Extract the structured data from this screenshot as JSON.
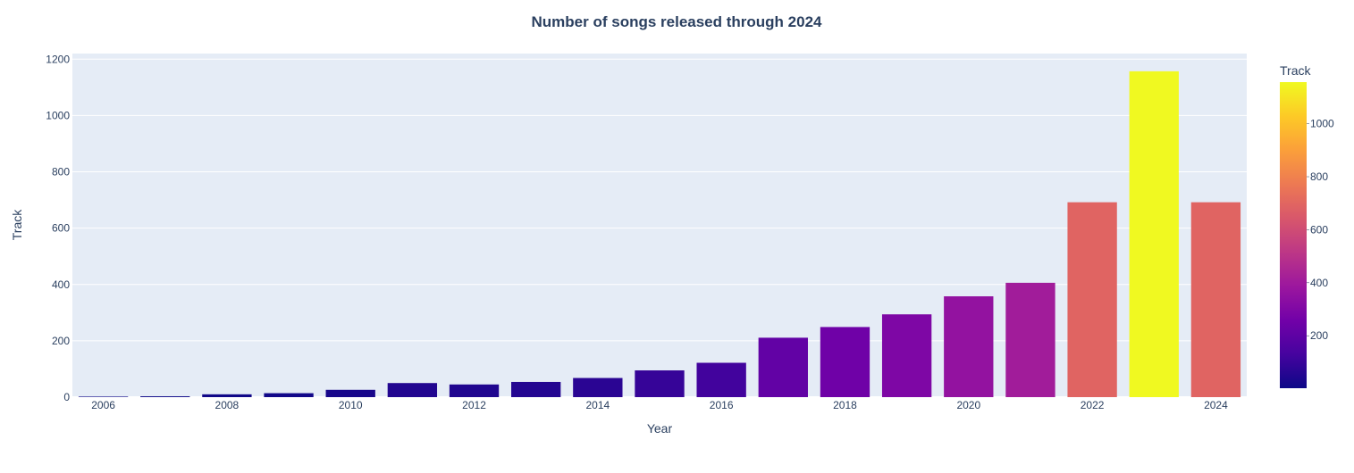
{
  "chart_data": {
    "type": "bar",
    "title": "Number of songs released through 2024",
    "xlabel": "Year",
    "ylabel": "Track",
    "colorbar_title": "Track",
    "x": [
      2006,
      2007,
      2008,
      2009,
      2010,
      2011,
      2012,
      2013,
      2014,
      2015,
      2016,
      2017,
      2018,
      2019,
      2020,
      2021,
      2022,
      2023,
      2024
    ],
    "values": [
      2,
      3,
      10,
      14,
      26,
      50,
      45,
      54,
      68,
      95,
      122,
      211,
      249,
      294,
      358,
      406,
      692,
      1157,
      692
    ],
    "x_ticks": [
      "2006",
      "2008",
      "2010",
      "2012",
      "2014",
      "2016",
      "2018",
      "2020",
      "2022",
      "2024"
    ],
    "y_ticks": [
      "0",
      "200",
      "400",
      "600",
      "800",
      "1000",
      "1200"
    ],
    "colorbar_ticks": [
      "200",
      "400",
      "600",
      "800",
      "1000"
    ],
    "ylim": [
      0,
      1220
    ],
    "xlim": [
      2005.5,
      2024.5
    ],
    "color_range": [
      2,
      1157
    ],
    "colorscale": [
      "#0d0887",
      "#46039f",
      "#7201a8",
      "#9c179e",
      "#bd3786",
      "#d8576b",
      "#ed7953",
      "#fb9f3a",
      "#fdca26",
      "#f0f921"
    ],
    "plot_background": "#e5ecf6",
    "grid": true,
    "colorbar_position": "right"
  }
}
